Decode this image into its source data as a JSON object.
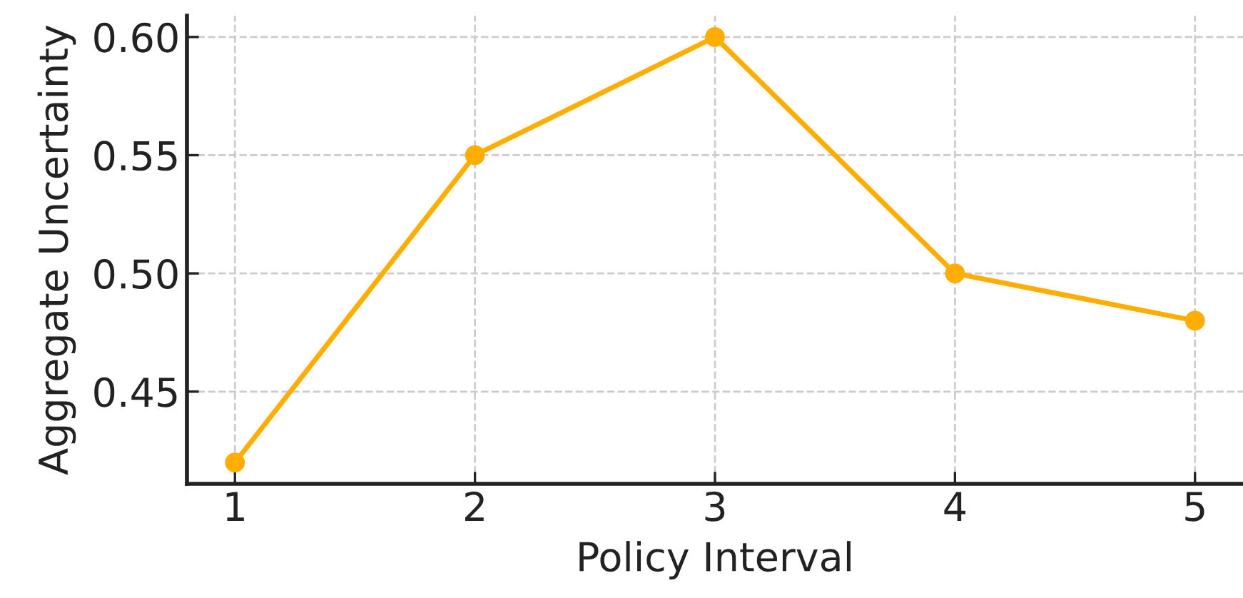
{
  "chart_data": {
    "type": "line",
    "xlabel": "Policy Interval",
    "ylabel": "Aggregate Uncertainty",
    "x": [
      1,
      2,
      3,
      4,
      5
    ],
    "series": [
      {
        "color": "#ffae00",
        "values": [
          0.42,
          0.55,
          0.6,
          0.5,
          0.48
        ]
      }
    ],
    "xlim": [
      0.8,
      5.2
    ],
    "ylim": [
      0.411,
      0.609
    ],
    "xticks": [
      1,
      2,
      3,
      4,
      5
    ],
    "yticks": [
      {
        "value": 0.45,
        "label": "0.45"
      },
      {
        "value": 0.5,
        "label": "0.50"
      },
      {
        "value": 0.55,
        "label": "0.55"
      },
      {
        "value": 0.6,
        "label": "0.60"
      }
    ],
    "grid": true,
    "marker": "circle",
    "line_style": "solid"
  }
}
